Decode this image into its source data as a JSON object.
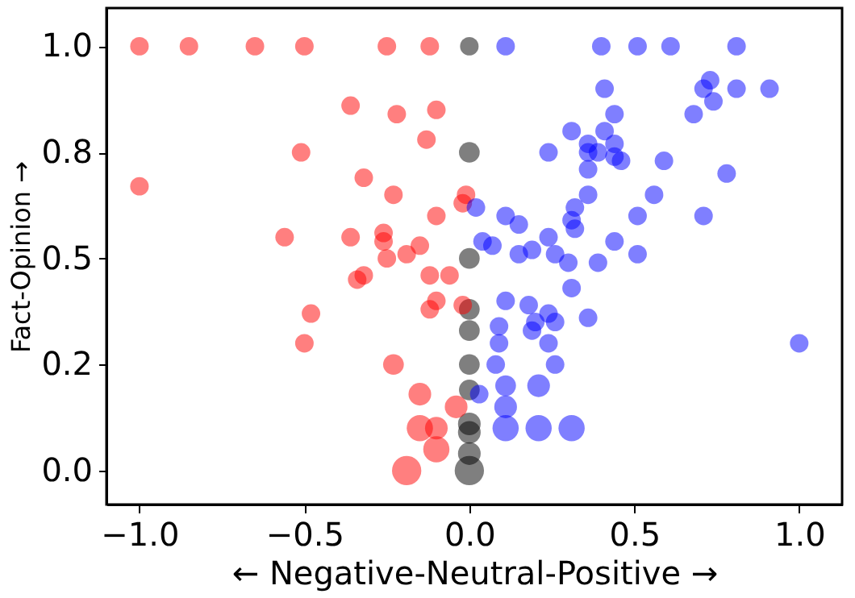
{
  "chart_data": {
    "type": "bubble",
    "xlabel": "← Negative-Neutral-Positive →",
    "ylabel": "Fact-Opinion →",
    "xlim": [
      -1.1,
      1.13
    ],
    "ylim": [
      -0.08,
      1.09
    ],
    "xticks": [
      {
        "value": -1,
        "label": "−1.0"
      },
      {
        "value": -0.5,
        "label": "−0.5"
      },
      {
        "value": 0,
        "label": "0.0"
      },
      {
        "value": 0.5,
        "label": "0.5"
      },
      {
        "value": 1,
        "label": "1.0"
      }
    ],
    "yticks": [
      {
        "value": 0,
        "label": "0.0"
      },
      {
        "value": 0.25,
        "label": "0.2"
      },
      {
        "value": 0.5,
        "label": "0.5"
      },
      {
        "value": 0.75,
        "label": "0.8"
      },
      {
        "value": 1,
        "label": "1.0"
      }
    ],
    "grid": false,
    "legend": false,
    "marker": "circle",
    "series": [
      {
        "color": "#ff0000",
        "x": [
          -1.0,
          -0.85,
          -0.65,
          -0.5,
          -0.25,
          -0.12,
          -0.36,
          -0.22,
          -0.1,
          -0.13,
          -0.51,
          -1.0,
          -0.32,
          -0.23,
          -0.01,
          -0.02,
          -0.1,
          -0.56,
          -0.36,
          -0.26,
          -0.26,
          -0.15,
          -0.25,
          -0.19,
          -0.34,
          -0.32,
          -0.12,
          -0.06,
          -0.1,
          -0.12,
          -0.02,
          -0.48,
          -0.5,
          -0.23,
          -0.15,
          -0.04,
          -0.15,
          -0.1,
          -0.1,
          -0.19
        ],
        "values": [
          1,
          1,
          1,
          1,
          1,
          1,
          0.86,
          0.84,
          0.85,
          0.78,
          0.75,
          0.67,
          0.69,
          0.65,
          0.65,
          0.63,
          0.6,
          0.55,
          0.55,
          0.56,
          0.54,
          0.53,
          0.5,
          0.51,
          0.45,
          0.46,
          0.46,
          0.46,
          0.4,
          0.38,
          0.39,
          0.37,
          0.3,
          0.25,
          0.18,
          0.15,
          0.1,
          0.1,
          0.05,
          0.0
        ],
        "sizes": [
          0.4,
          0.4,
          0.4,
          0.4,
          0.4,
          0.4,
          0.4,
          0.4,
          0.4,
          0.4,
          0.4,
          0.4,
          0.4,
          0.4,
          0.4,
          0.4,
          0.4,
          0.4,
          0.4,
          0.4,
          0.4,
          0.4,
          0.4,
          0.4,
          0.4,
          0.4,
          0.4,
          0.4,
          0.4,
          0.4,
          0.4,
          0.4,
          0.4,
          0.5,
          0.6,
          0.6,
          0.8,
          0.6,
          0.8,
          1
        ]
      },
      {
        "color": "#0000ff",
        "x": [
          0.11,
          0.4,
          0.51,
          0.61,
          0.81,
          0.41,
          0.71,
          0.73,
          0.81,
          0.91,
          0.74,
          0.68,
          0.44,
          0.31,
          0.41,
          0.24,
          0.36,
          0.36,
          0.39,
          0.44,
          0.44,
          0.46,
          0.59,
          0.36,
          0.78,
          0.36,
          0.56,
          0.32,
          0.02,
          0.11,
          0.15,
          0.31,
          0.32,
          0.51,
          0.71,
          0.24,
          0.44,
          0.04,
          0.07,
          0.15,
          0.19,
          0.26,
          0.51,
          0.3,
          0.39,
          0.11,
          0.18,
          0.31,
          0.36,
          0.24,
          0.2,
          0.26,
          0.19,
          0.24,
          0.09,
          0.09,
          1.0,
          0.08,
          0.26,
          0.03,
          0.11,
          0.21,
          0.11,
          0.11,
          0.21,
          0.31
        ],
        "values": [
          1,
          1,
          1,
          1,
          1,
          0.9,
          0.9,
          0.92,
          0.9,
          0.9,
          0.87,
          0.84,
          0.84,
          0.8,
          0.8,
          0.75,
          0.77,
          0.75,
          0.75,
          0.77,
          0.74,
          0.73,
          0.73,
          0.71,
          0.7,
          0.65,
          0.65,
          0.62,
          0.62,
          0.6,
          0.58,
          0.59,
          0.57,
          0.6,
          0.6,
          0.55,
          0.54,
          0.54,
          0.53,
          0.51,
          0.52,
          0.51,
          0.51,
          0.49,
          0.49,
          0.4,
          0.39,
          0.43,
          0.36,
          0.37,
          0.35,
          0.35,
          0.33,
          0.3,
          0.34,
          0.3,
          0.3,
          0.25,
          0.25,
          0.18,
          0.2,
          0.2,
          0.15,
          0.1,
          0.1,
          0.1
        ],
        "sizes": [
          0.4,
          0.4,
          0.4,
          0.4,
          0.4,
          0.4,
          0.4,
          0.4,
          0.4,
          0.4,
          0.4,
          0.4,
          0.4,
          0.4,
          0.4,
          0.4,
          0.4,
          0.4,
          0.4,
          0.4,
          0.4,
          0.4,
          0.4,
          0.4,
          0.4,
          0.4,
          0.4,
          0.4,
          0.4,
          0.4,
          0.4,
          0.4,
          0.4,
          0.4,
          0.4,
          0.4,
          0.4,
          0.4,
          0.4,
          0.4,
          0.4,
          0.4,
          0.4,
          0.4,
          0.4,
          0.4,
          0.4,
          0.4,
          0.4,
          0.4,
          0.4,
          0.4,
          0.4,
          0.4,
          0.4,
          0.4,
          0.4,
          0.4,
          0.4,
          0.4,
          0.5,
          0.6,
          0.6,
          0.8,
          0.8,
          0.8
        ]
      },
      {
        "color": "#000000",
        "x": [
          0,
          0,
          0,
          0,
          0,
          0,
          0,
          0,
          0,
          0,
          0
        ],
        "values": [
          1,
          0.75,
          0.5,
          0.38,
          0.33,
          0.25,
          0.19,
          0.11,
          0.09,
          0.04,
          0.0
        ],
        "sizes": [
          0.4,
          0.5,
          0.5,
          0.5,
          0.5,
          0.5,
          0.5,
          0.6,
          0.6,
          0.6,
          1
        ]
      }
    ]
  }
}
